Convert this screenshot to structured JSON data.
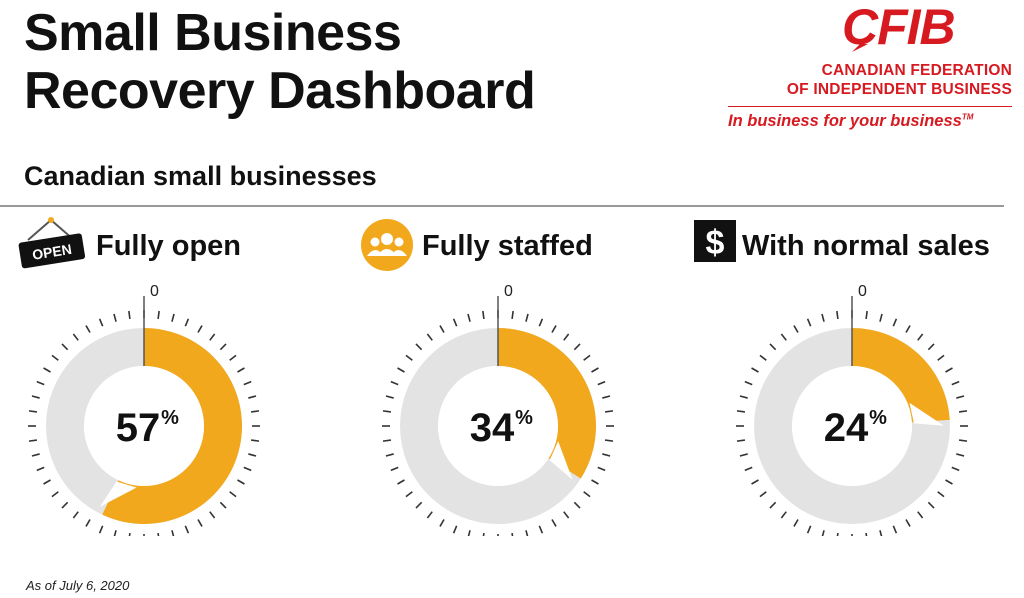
{
  "header": {
    "title_line1": "Small Business",
    "title_line2": "Recovery Dashboard",
    "subtitle": "Canadian small businesses"
  },
  "brand": {
    "logo_text": "CFIB",
    "name_line1": "CANADIAN FEDERATION",
    "name_line2": "OF INDEPENDENT BUSINESS",
    "tagline": "In business for your business",
    "tagline_mark": "TM",
    "color": "#d71920"
  },
  "icons": {
    "open_sign_text": "OPEN",
    "dollar_symbol": "$"
  },
  "chart_data": [
    {
      "type": "pie",
      "title": "Fully open",
      "value": 57,
      "value_label": "57",
      "unit": "%",
      "zero_label": "0",
      "icon": "open-sign-icon"
    },
    {
      "type": "pie",
      "title": "Fully staffed",
      "value": 34,
      "value_label": "34",
      "unit": "%",
      "zero_label": "0",
      "icon": "staff-group-icon"
    },
    {
      "type": "pie",
      "title": "With normal sales",
      "value": 24,
      "value_label": "24",
      "unit": "%",
      "zero_label": "0",
      "icon": "dollar-icon"
    }
  ],
  "colors": {
    "fill": "#f2a81d",
    "track": "#e3e3e3",
    "ticks": "#333333",
    "needle": "#555555"
  },
  "footnote": "As of July 6, 2020"
}
